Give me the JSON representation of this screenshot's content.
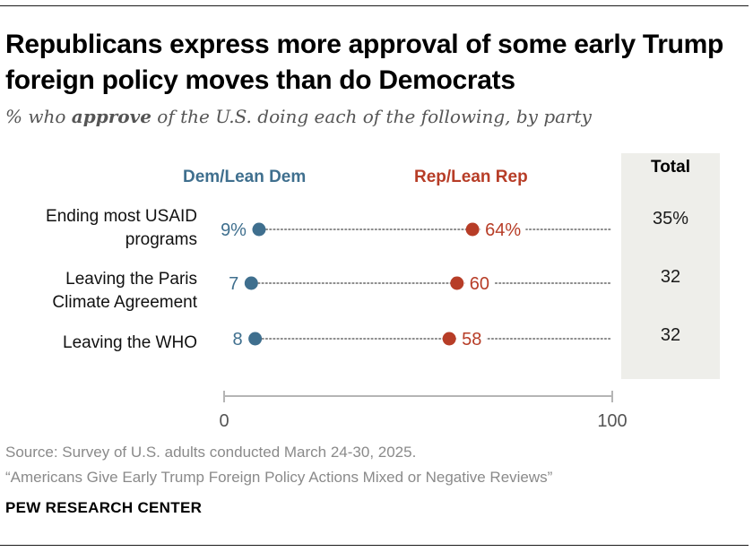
{
  "title": "Republicans express more approval of some early Trump foreign policy moves than do Democrats",
  "subtitle_pre": "% who ",
  "subtitle_em": "approve",
  "subtitle_post": " of the U.S. doing each of the following, by party",
  "legend": {
    "dem": "Dem/Lean Dem",
    "rep": "Rep/Lean Rep"
  },
  "total_header": "Total",
  "colors": {
    "dem": "#3f6f8e",
    "rep": "#b73d27",
    "total_bg": "#eeeeea",
    "dots": "#8c8c8c"
  },
  "chart_data": {
    "type": "dot",
    "xlim": [
      0,
      100
    ],
    "ticks": [
      0,
      100
    ],
    "series": [
      {
        "name": "Dem/Lean Dem",
        "values": [
          9,
          7,
          8
        ],
        "labels": [
          "9%",
          "7",
          "8"
        ]
      },
      {
        "name": "Rep/Lean Rep",
        "values": [
          64,
          60,
          58
        ],
        "labels": [
          "64%",
          "60",
          "58"
        ]
      }
    ],
    "categories": [
      "Ending most USAID programs",
      "Leaving the Paris Climate Agreement",
      "Leaving the WHO"
    ],
    "category_lines": [
      [
        "Ending most USAID",
        "programs"
      ],
      [
        "Leaving the Paris",
        "Climate Agreement"
      ],
      [
        "Leaving the WHO"
      ]
    ],
    "total": {
      "values": [
        35,
        32,
        32
      ],
      "labels": [
        "35%",
        "32",
        "32"
      ]
    }
  },
  "source": "Source: Survey of U.S. adults conducted March 24-30, 2025.",
  "report": "“Americans Give Early Trump Foreign Policy Actions Mixed or Negative Reviews”",
  "org": "PEW RESEARCH CENTER"
}
